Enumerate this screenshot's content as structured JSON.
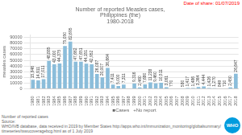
{
  "chart_data": {
    "type": "bar",
    "title": "Number of reported Measles cases,\nPhilippines (the)\n1980-2018",
    "xlabel": "■Cases   +No report",
    "ylabel": "measles cases",
    "categories": [
      "1980",
      "1981",
      "1982",
      "1983",
      "1984",
      "1985",
      "1986",
      "1987",
      "1988",
      "1989",
      "1990",
      "1991",
      "1992",
      "1993",
      "1994",
      "1995",
      "1996",
      "1997",
      "1998",
      "1999",
      "2000",
      "2001",
      "2002",
      "2003",
      "2004",
      "2005",
      "2006",
      "2007",
      "2008",
      "2009",
      "2010",
      "2011",
      "2012",
      "2013",
      "2014",
      "2015",
      "2016",
      "2017",
      "2018"
    ],
    "values": [
      15946,
      14911,
      17011,
      48885,
      43000,
      44375,
      75050,
      82695,
      47662,
      47651,
      44151,
      42952,
      26087,
      20007,
      36664,
      7411,
      5000,
      7311,
      0,
      9316,
      2460,
      7680,
      11238,
      9460,
      10511,
      3061,
      770,
      0,
      580,
      1417,
      1486,
      3364,
      4444,
      1426,
      1270,
      849,
      710,
      2450,
      26647
    ],
    "value_labels": [
      "15,946",
      "14,911",
      "17,011",
      "48,885",
      "43,000",
      "44,375",
      "75,050",
      "82,695",
      "47,662",
      "47,651",
      "44,151",
      "42,952",
      "26,087",
      "20,007",
      "36,664",
      "7,411",
      "5,000",
      "7,311",
      null,
      "9,316",
      "2,460",
      "7,680",
      "11,238",
      "9,460",
      "10,511",
      "3,061",
      "770",
      null,
      "580",
      "1,417",
      "1,486",
      "3,364",
      "4,444",
      "1,426",
      "1,270",
      "849",
      "710",
      "2,450",
      "26,647"
    ],
    "colors": [
      "#8bbdda",
      "#8bbdda",
      "#8bbdda",
      "#8bbdda",
      "#8bbdda",
      "#8bbdda",
      "#8bbdda",
      "#8bbdda",
      "#8bbdda",
      "#8bbdda",
      "#8bbdda",
      "#8bbdda",
      "#8bbdda",
      "#8bbdda",
      "#8bbdda",
      "#8bbdda",
      "#8bbdda",
      "#8bbdda",
      "#aacce0",
      "#8bbdda",
      "#8bbdda",
      "#8bbdda",
      "#8bbdda",
      "#8bbdda",
      "#8bbdda",
      "#8bbdda",
      "#8bbdda",
      "#aacce0",
      "#8bbdda",
      "#8bbdda",
      "#8bbdda",
      "#8bbdda",
      "#8bbdda",
      "#8bbdda",
      "#8bbdda",
      "#8bbdda",
      "#8bbdda",
      "#8bbdda",
      "#8bbdda"
    ],
    "data_labels": true,
    "ylim": [
      0,
      95000
    ],
    "yticks": [
      0,
      10000,
      20000,
      30000,
      40000,
      50000,
      60000,
      70000,
      80000,
      90000
    ],
    "grid": true,
    "annotations": [
      {
        "text": "Date of share: 01/07/2019",
        "color": "red"
      },
      {
        "text": "Number of reported cases"
      },
      {
        "text": "Source:"
      },
      {
        "text": "WHO/IVB database, data received in 2019 by Member States http://apps.who.int/immunization_monitoring/globalsummary/timeseries/tswucoveragebcg.html as of 1 July 2019"
      },
      {
        "text": "WHO",
        "color": "#009cde"
      }
    ]
  }
}
